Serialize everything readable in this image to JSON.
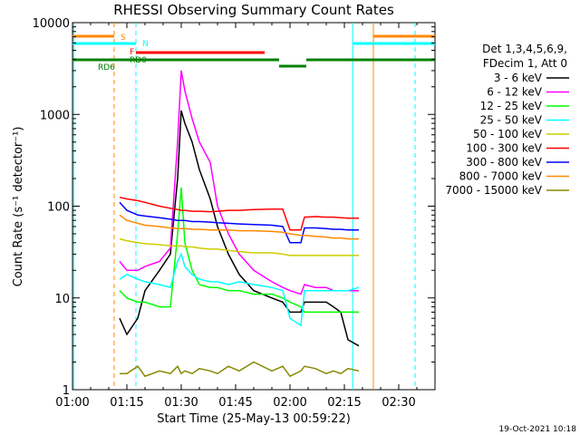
{
  "chart_data": {
    "type": "line",
    "title": "RHESSI Observing Summary Count Rates",
    "xlabel": "Start Time (25-May-13 00:59:22)",
    "ylabel": "Count Rate (s⁻¹ detector⁻¹)",
    "y_scale": "log",
    "xlim_minutes": [
      0,
      100
    ],
    "ylim": [
      1,
      10000
    ],
    "x_ticks": [
      {
        "t": 0,
        "label": "01:00"
      },
      {
        "t": 15,
        "label": "01:15"
      },
      {
        "t": 30,
        "label": "01:30"
      },
      {
        "t": 45,
        "label": "01:45"
      },
      {
        "t": 60,
        "label": "02:00"
      },
      {
        "t": 75,
        "label": "02:15"
      },
      {
        "t": 90,
        "label": "02:30"
      }
    ],
    "y_ticks": [
      {
        "v": 1,
        "label": "1"
      },
      {
        "v": 10,
        "label": "10"
      },
      {
        "v": 100,
        "label": "100"
      },
      {
        "v": 1000,
        "label": "1000"
      },
      {
        "v": 10000,
        "label": "10000"
      }
    ],
    "legend_header": [
      "Det 1,3,4,5,6,9,",
      "FDecim 1, Att 0"
    ],
    "series": [
      {
        "name": "3 - 6 keV",
        "color": "#000000",
        "points": [
          [
            13,
            6
          ],
          [
            15,
            4
          ],
          [
            18,
            6
          ],
          [
            20,
            12
          ],
          [
            24,
            20
          ],
          [
            27,
            30
          ],
          [
            29,
            200
          ],
          [
            30,
            1100
          ],
          [
            31,
            800
          ],
          [
            33,
            500
          ],
          [
            35,
            250
          ],
          [
            38,
            120
          ],
          [
            40,
            60
          ],
          [
            43,
            30
          ],
          [
            46,
            18
          ],
          [
            50,
            12
          ],
          [
            55,
            10
          ],
          [
            58,
            9
          ],
          [
            60,
            7
          ],
          [
            63,
            7
          ],
          [
            64,
            9
          ],
          [
            67,
            9
          ],
          [
            70,
            9
          ],
          [
            72,
            8
          ],
          [
            74,
            7
          ],
          [
            76,
            3.5
          ],
          [
            79,
            3
          ]
        ]
      },
      {
        "name": "6 - 12 keV",
        "color": "#ff00ff",
        "points": [
          [
            13,
            25
          ],
          [
            15,
            20
          ],
          [
            18,
            20
          ],
          [
            20,
            22
          ],
          [
            24,
            25
          ],
          [
            27,
            35
          ],
          [
            29,
            500
          ],
          [
            30,
            3000
          ],
          [
            31,
            1800
          ],
          [
            33,
            900
          ],
          [
            35,
            500
          ],
          [
            38,
            300
          ],
          [
            40,
            100
          ],
          [
            43,
            50
          ],
          [
            46,
            30
          ],
          [
            50,
            20
          ],
          [
            55,
            15
          ],
          [
            58,
            13
          ],
          [
            60,
            12
          ],
          [
            63,
            11
          ],
          [
            64,
            14
          ],
          [
            67,
            13
          ],
          [
            70,
            13
          ],
          [
            72,
            12
          ],
          [
            74,
            12
          ],
          [
            76,
            12
          ],
          [
            79,
            12
          ]
        ]
      },
      {
        "name": "12 - 25 keV",
        "color": "#00ff00",
        "points": [
          [
            13,
            12
          ],
          [
            15,
            10
          ],
          [
            18,
            9
          ],
          [
            20,
            9
          ],
          [
            24,
            8
          ],
          [
            27,
            8
          ],
          [
            29,
            50
          ],
          [
            30,
            160
          ],
          [
            31,
            40
          ],
          [
            33,
            20
          ],
          [
            35,
            14
          ],
          [
            38,
            13
          ],
          [
            40,
            13
          ],
          [
            43,
            12
          ],
          [
            46,
            12
          ],
          [
            50,
            11
          ],
          [
            55,
            11
          ],
          [
            58,
            10
          ],
          [
            60,
            9
          ],
          [
            63,
            8
          ],
          [
            64,
            7
          ],
          [
            67,
            7
          ],
          [
            70,
            7
          ],
          [
            72,
            7
          ],
          [
            74,
            7
          ],
          [
            76,
            7
          ],
          [
            79,
            7
          ]
        ]
      },
      {
        "name": "25 - 50 keV",
        "color": "#00ffff",
        "points": [
          [
            13,
            16
          ],
          [
            15,
            18
          ],
          [
            18,
            16
          ],
          [
            20,
            15
          ],
          [
            24,
            14
          ],
          [
            27,
            13
          ],
          [
            29,
            25
          ],
          [
            30,
            30
          ],
          [
            31,
            22
          ],
          [
            33,
            18
          ],
          [
            35,
            16
          ],
          [
            38,
            15
          ],
          [
            40,
            15
          ],
          [
            43,
            14
          ],
          [
            46,
            15
          ],
          [
            50,
            14
          ],
          [
            55,
            13
          ],
          [
            58,
            12
          ],
          [
            60,
            6
          ],
          [
            63,
            5
          ],
          [
            64,
            12
          ],
          [
            67,
            12
          ],
          [
            70,
            12
          ],
          [
            72,
            12
          ],
          [
            74,
            12
          ],
          [
            76,
            12
          ],
          [
            79,
            13
          ]
        ]
      },
      {
        "name": "50 - 100 keV",
        "color": "#cccc00",
        "points": [
          [
            13,
            44
          ],
          [
            15,
            42
          ],
          [
            18,
            40
          ],
          [
            20,
            39
          ],
          [
            24,
            38
          ],
          [
            27,
            37
          ],
          [
            29,
            37
          ],
          [
            30,
            37
          ],
          [
            31,
            36
          ],
          [
            33,
            36
          ],
          [
            35,
            35
          ],
          [
            38,
            34
          ],
          [
            40,
            34
          ],
          [
            43,
            33
          ],
          [
            46,
            32
          ],
          [
            50,
            31
          ],
          [
            55,
            31
          ],
          [
            58,
            30
          ],
          [
            60,
            29
          ],
          [
            63,
            29
          ],
          [
            64,
            29
          ],
          [
            67,
            29
          ],
          [
            70,
            29
          ],
          [
            72,
            29
          ],
          [
            74,
            29
          ],
          [
            76,
            29
          ],
          [
            79,
            29
          ]
        ]
      },
      {
        "name": "100 - 300 keV",
        "color": "#ff0000",
        "points": [
          [
            13,
            125
          ],
          [
            15,
            120
          ],
          [
            18,
            115
          ],
          [
            20,
            110
          ],
          [
            24,
            100
          ],
          [
            27,
            95
          ],
          [
            29,
            92
          ],
          [
            30,
            90
          ],
          [
            31,
            90
          ],
          [
            33,
            88
          ],
          [
            35,
            88
          ],
          [
            38,
            87
          ],
          [
            40,
            88
          ],
          [
            43,
            90
          ],
          [
            46,
            90
          ],
          [
            50,
            92
          ],
          [
            55,
            93
          ],
          [
            58,
            93
          ],
          [
            60,
            55
          ],
          [
            63,
            55
          ],
          [
            64,
            76
          ],
          [
            67,
            77
          ],
          [
            70,
            76
          ],
          [
            72,
            76
          ],
          [
            74,
            75
          ],
          [
            76,
            74
          ],
          [
            79,
            74
          ]
        ]
      },
      {
        "name": "300 - 800 keV",
        "color": "#0000ff",
        "points": [
          [
            13,
            110
          ],
          [
            15,
            90
          ],
          [
            18,
            80
          ],
          [
            20,
            78
          ],
          [
            24,
            75
          ],
          [
            27,
            72
          ],
          [
            29,
            70
          ],
          [
            30,
            70
          ],
          [
            31,
            70
          ],
          [
            33,
            68
          ],
          [
            35,
            68
          ],
          [
            38,
            67
          ],
          [
            40,
            66
          ],
          [
            43,
            65
          ],
          [
            46,
            64
          ],
          [
            50,
            63
          ],
          [
            55,
            62
          ],
          [
            58,
            60
          ],
          [
            60,
            40
          ],
          [
            63,
            40
          ],
          [
            64,
            58
          ],
          [
            67,
            58
          ],
          [
            70,
            57
          ],
          [
            72,
            56
          ],
          [
            74,
            56
          ],
          [
            76,
            55
          ],
          [
            79,
            55
          ]
        ]
      },
      {
        "name": "800 - 7000 keV",
        "color": "#ff8800",
        "points": [
          [
            13,
            80
          ],
          [
            15,
            70
          ],
          [
            18,
            65
          ],
          [
            20,
            62
          ],
          [
            24,
            60
          ],
          [
            27,
            58
          ],
          [
            29,
            57
          ],
          [
            30,
            57
          ],
          [
            31,
            57
          ],
          [
            33,
            56
          ],
          [
            35,
            56
          ],
          [
            38,
            55
          ],
          [
            40,
            55
          ],
          [
            43,
            55
          ],
          [
            46,
            54
          ],
          [
            50,
            54
          ],
          [
            55,
            53
          ],
          [
            58,
            52
          ],
          [
            60,
            50
          ],
          [
            63,
            48
          ],
          [
            64,
            48
          ],
          [
            67,
            47
          ],
          [
            70,
            46
          ],
          [
            72,
            45
          ],
          [
            74,
            45
          ],
          [
            76,
            44
          ],
          [
            79,
            44
          ]
        ]
      },
      {
        "name": "7000 - 15000 keV",
        "color": "#888800",
        "points": [
          [
            13,
            1.5
          ],
          [
            15,
            1.5
          ],
          [
            18,
            1.8
          ],
          [
            20,
            1.4
          ],
          [
            24,
            1.6
          ],
          [
            27,
            1.5
          ],
          [
            29,
            1.8
          ],
          [
            30,
            1.5
          ],
          [
            31,
            1.6
          ],
          [
            33,
            1.5
          ],
          [
            35,
            1.7
          ],
          [
            38,
            1.6
          ],
          [
            40,
            1.5
          ],
          [
            43,
            1.8
          ],
          [
            46,
            1.6
          ],
          [
            50,
            2
          ],
          [
            55,
            1.6
          ],
          [
            58,
            1.8
          ],
          [
            60,
            1.4
          ],
          [
            63,
            1.6
          ],
          [
            64,
            1.8
          ],
          [
            67,
            1.7
          ],
          [
            70,
            1.5
          ],
          [
            72,
            1.6
          ],
          [
            74,
            1.5
          ],
          [
            76,
            1.7
          ],
          [
            79,
            1.6
          ]
        ]
      }
    ],
    "vertical_markers": [
      {
        "t": 0.3,
        "color": "#00ffff",
        "style": "solid"
      },
      {
        "t": 11.5,
        "color": "#ff8800",
        "style": "dashed"
      },
      {
        "t": 17.5,
        "color": "#00ffff",
        "style": "dashed"
      },
      {
        "t": 77.3,
        "color": "#00ffff",
        "style": "solid"
      },
      {
        "t": 83,
        "color": "#ff8800",
        "style": "solid"
      },
      {
        "t": 94.5,
        "color": "#00ffff",
        "style": "dashed"
      }
    ],
    "status_bars": [
      {
        "label": "S",
        "color": "#ff8800",
        "segments": [
          [
            0,
            11.5
          ],
          [
            83,
            100
          ]
        ]
      },
      {
        "label": "N",
        "color": "#00ffff",
        "segments": [
          [
            0,
            17.5
          ],
          [
            77.3,
            100
          ]
        ]
      },
      {
        "label": "F",
        "color": "#ff0000",
        "segments": [
          [
            17.5,
            53
          ]
        ]
      },
      {
        "label": "RD0",
        "color": "#008000",
        "segments": [
          [
            0,
            57
          ],
          [
            64.5,
            100
          ]
        ]
      },
      {
        "label": "RD6",
        "color": "#008000",
        "segments": [
          [
            57,
            64.5
          ]
        ]
      }
    ]
  },
  "footer_timestamp": "19-Oct-2021 10:18"
}
